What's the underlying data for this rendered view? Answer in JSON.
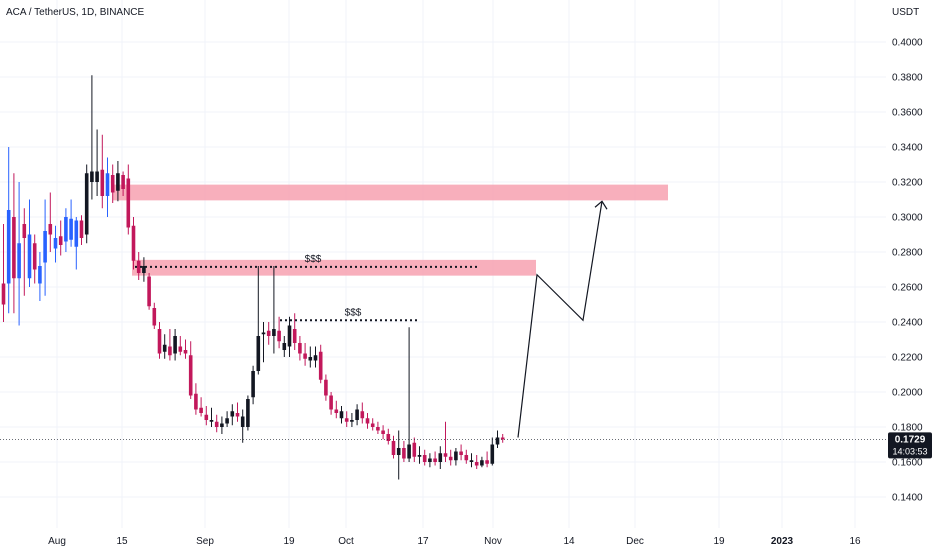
{
  "header": {
    "title": "ACA / TetherUS, 1D, BINANCE"
  },
  "axis": {
    "currency": "USDT"
  },
  "price_badge": {
    "price": "0.1729",
    "countdown": "14:03:53"
  },
  "colors": {
    "up": "#2962ff",
    "down": "#c2185b",
    "zone": "#f7a1b0",
    "black_candle": "#131722",
    "grid": "#f0f3fa",
    "badge_bg": "#131722"
  },
  "chart_data": {
    "type": "candlestick",
    "title": "ACA / TetherUS, 1D, BINANCE",
    "ylabel": "USDT",
    "ylim": [
      0.13,
      0.41
    ],
    "y_ticks": [
      "0.1400",
      "0.1600",
      "0.1800",
      "0.2000",
      "0.2200",
      "0.2400",
      "0.2600",
      "0.2800",
      "0.3000",
      "0.3200",
      "0.3400",
      "0.3600",
      "0.3800",
      "0.4000"
    ],
    "x_ticks": [
      "Aug",
      "15",
      "Sep",
      "19",
      "Oct",
      "17",
      "Nov",
      "14",
      "Dec",
      "19",
      "2023",
      "16"
    ],
    "current_price": 0.1729,
    "zones": [
      {
        "label": "",
        "low": 0.3095,
        "high": 0.3185
      },
      {
        "label": "$$$",
        "low": 0.2665,
        "high": 0.2755
      }
    ],
    "liquidity_lines": [
      {
        "label": "$$$",
        "price": 0.2715
      },
      {
        "label": "$$$",
        "price": 0.241
      }
    ],
    "projection_path": [
      0.174,
      0.267,
      0.241,
      0.309
    ],
    "candles": [
      {
        "o": 0.25,
        "h": 0.296,
        "l": 0.24,
        "c": 0.262,
        "d": "down"
      },
      {
        "o": 0.262,
        "h": 0.34,
        "l": 0.245,
        "c": 0.304,
        "d": "up"
      },
      {
        "o": 0.3,
        "h": 0.325,
        "l": 0.245,
        "c": 0.265,
        "d": "down"
      },
      {
        "o": 0.265,
        "h": 0.32,
        "l": 0.238,
        "c": 0.285,
        "d": "up"
      },
      {
        "o": 0.288,
        "h": 0.305,
        "l": 0.255,
        "c": 0.296,
        "d": "down"
      },
      {
        "o": 0.265,
        "h": 0.31,
        "l": 0.26,
        "c": 0.29,
        "d": "up"
      },
      {
        "o": 0.285,
        "h": 0.29,
        "l": 0.262,
        "c": 0.27,
        "d": "down"
      },
      {
        "o": 0.262,
        "h": 0.28,
        "l": 0.252,
        "c": 0.272,
        "d": "up"
      },
      {
        "o": 0.274,
        "h": 0.31,
        "l": 0.255,
        "c": 0.292,
        "d": "up"
      },
      {
        "o": 0.29,
        "h": 0.314,
        "l": 0.28,
        "c": 0.296,
        "d": "down"
      },
      {
        "o": 0.282,
        "h": 0.295,
        "l": 0.274,
        "c": 0.288,
        "d": "up"
      },
      {
        "o": 0.289,
        "h": 0.298,
        "l": 0.278,
        "c": 0.284,
        "d": "down"
      },
      {
        "o": 0.286,
        "h": 0.305,
        "l": 0.28,
        "c": 0.3,
        "d": "up"
      },
      {
        "o": 0.299,
        "h": 0.31,
        "l": 0.283,
        "c": 0.287,
        "d": "up"
      },
      {
        "o": 0.283,
        "h": 0.3,
        "l": 0.27,
        "c": 0.298,
        "d": "up"
      },
      {
        "o": 0.298,
        "h": 0.301,
        "l": 0.284,
        "c": 0.288,
        "d": "down"
      },
      {
        "o": 0.29,
        "h": 0.33,
        "l": 0.285,
        "c": 0.325,
        "d": "black"
      },
      {
        "o": 0.326,
        "h": 0.381,
        "l": 0.31,
        "c": 0.32,
        "d": "black"
      },
      {
        "o": 0.32,
        "h": 0.35,
        "l": 0.312,
        "c": 0.326,
        "d": "black"
      },
      {
        "o": 0.327,
        "h": 0.347,
        "l": 0.305,
        "c": 0.312,
        "d": "down"
      },
      {
        "o": 0.312,
        "h": 0.334,
        "l": 0.3,
        "c": 0.325,
        "d": "up"
      },
      {
        "o": 0.324,
        "h": 0.33,
        "l": 0.308,
        "c": 0.314,
        "d": "down"
      },
      {
        "o": 0.315,
        "h": 0.332,
        "l": 0.309,
        "c": 0.325,
        "d": "black"
      },
      {
        "o": 0.324,
        "h": 0.326,
        "l": 0.312,
        "c": 0.316,
        "d": "down"
      },
      {
        "o": 0.322,
        "h": 0.33,
        "l": 0.29,
        "c": 0.294,
        "d": "down"
      },
      {
        "o": 0.295,
        "h": 0.3,
        "l": 0.27,
        "c": 0.275,
        "d": "down"
      },
      {
        "o": 0.275,
        "h": 0.28,
        "l": 0.264,
        "c": 0.268,
        "d": "down"
      },
      {
        "o": 0.268,
        "h": 0.277,
        "l": 0.263,
        "c": 0.272,
        "d": "black"
      },
      {
        "o": 0.266,
        "h": 0.268,
        "l": 0.247,
        "c": 0.249,
        "d": "down"
      },
      {
        "o": 0.248,
        "h": 0.251,
        "l": 0.236,
        "c": 0.238,
        "d": "down"
      },
      {
        "o": 0.236,
        "h": 0.24,
        "l": 0.219,
        "c": 0.222,
        "d": "down"
      },
      {
        "o": 0.223,
        "h": 0.233,
        "l": 0.219,
        "c": 0.227,
        "d": "black"
      },
      {
        "o": 0.226,
        "h": 0.236,
        "l": 0.218,
        "c": 0.221,
        "d": "down"
      },
      {
        "o": 0.222,
        "h": 0.236,
        "l": 0.218,
        "c": 0.232,
        "d": "black"
      },
      {
        "o": 0.226,
        "h": 0.232,
        "l": 0.221,
        "c": 0.223,
        "d": "down"
      },
      {
        "o": 0.224,
        "h": 0.23,
        "l": 0.219,
        "c": 0.222,
        "d": "down"
      },
      {
        "o": 0.221,
        "h": 0.229,
        "l": 0.196,
        "c": 0.198,
        "d": "down"
      },
      {
        "o": 0.199,
        "h": 0.205,
        "l": 0.187,
        "c": 0.19,
        "d": "down"
      },
      {
        "o": 0.191,
        "h": 0.197,
        "l": 0.186,
        "c": 0.188,
        "d": "down"
      },
      {
        "o": 0.187,
        "h": 0.192,
        "l": 0.181,
        "c": 0.184,
        "d": "down"
      },
      {
        "o": 0.184,
        "h": 0.191,
        "l": 0.18,
        "c": 0.183,
        "d": "black"
      },
      {
        "o": 0.183,
        "h": 0.187,
        "l": 0.177,
        "c": 0.18,
        "d": "down"
      },
      {
        "o": 0.18,
        "h": 0.186,
        "l": 0.176,
        "c": 0.182,
        "d": "black"
      },
      {
        "o": 0.182,
        "h": 0.189,
        "l": 0.18,
        "c": 0.185,
        "d": "black"
      },
      {
        "o": 0.186,
        "h": 0.193,
        "l": 0.181,
        "c": 0.189,
        "d": "black"
      },
      {
        "o": 0.188,
        "h": 0.194,
        "l": 0.183,
        "c": 0.186,
        "d": "down"
      },
      {
        "o": 0.186,
        "h": 0.19,
        "l": 0.171,
        "c": 0.18,
        "d": "black"
      },
      {
        "o": 0.18,
        "h": 0.198,
        "l": 0.178,
        "c": 0.196,
        "d": "black"
      },
      {
        "o": 0.197,
        "h": 0.215,
        "l": 0.193,
        "c": 0.212,
        "d": "black"
      },
      {
        "o": 0.212,
        "h": 0.272,
        "l": 0.21,
        "c": 0.232,
        "d": "black"
      },
      {
        "o": 0.233,
        "h": 0.24,
        "l": 0.217,
        "c": 0.234,
        "d": "black"
      },
      {
        "o": 0.235,
        "h": 0.24,
        "l": 0.227,
        "c": 0.232,
        "d": "down"
      },
      {
        "o": 0.232,
        "h": 0.272,
        "l": 0.222,
        "c": 0.236,
        "d": "black"
      },
      {
        "o": 0.235,
        "h": 0.243,
        "l": 0.225,
        "c": 0.229,
        "d": "down"
      },
      {
        "o": 0.228,
        "h": 0.232,
        "l": 0.22,
        "c": 0.224,
        "d": "black"
      },
      {
        "o": 0.226,
        "h": 0.243,
        "l": 0.22,
        "c": 0.238,
        "d": "black"
      },
      {
        "o": 0.236,
        "h": 0.245,
        "l": 0.224,
        "c": 0.228,
        "d": "down"
      },
      {
        "o": 0.228,
        "h": 0.232,
        "l": 0.218,
        "c": 0.222,
        "d": "down"
      },
      {
        "o": 0.222,
        "h": 0.228,
        "l": 0.215,
        "c": 0.219,
        "d": "down"
      },
      {
        "o": 0.22,
        "h": 0.226,
        "l": 0.214,
        "c": 0.218,
        "d": "black"
      },
      {
        "o": 0.218,
        "h": 0.226,
        "l": 0.214,
        "c": 0.221,
        "d": "black"
      },
      {
        "o": 0.223,
        "h": 0.227,
        "l": 0.205,
        "c": 0.207,
        "d": "down"
      },
      {
        "o": 0.207,
        "h": 0.21,
        "l": 0.195,
        "c": 0.198,
        "d": "down"
      },
      {
        "o": 0.198,
        "h": 0.2,
        "l": 0.187,
        "c": 0.19,
        "d": "down"
      },
      {
        "o": 0.19,
        "h": 0.195,
        "l": 0.185,
        "c": 0.188,
        "d": "down"
      },
      {
        "o": 0.189,
        "h": 0.192,
        "l": 0.182,
        "c": 0.185,
        "d": "black"
      },
      {
        "o": 0.185,
        "h": 0.189,
        "l": 0.18,
        "c": 0.183,
        "d": "down"
      },
      {
        "o": 0.183,
        "h": 0.188,
        "l": 0.18,
        "c": 0.184,
        "d": "black"
      },
      {
        "o": 0.184,
        "h": 0.193,
        "l": 0.181,
        "c": 0.19,
        "d": "black"
      },
      {
        "o": 0.189,
        "h": 0.194,
        "l": 0.182,
        "c": 0.185,
        "d": "down"
      },
      {
        "o": 0.185,
        "h": 0.188,
        "l": 0.179,
        "c": 0.182,
        "d": "down"
      },
      {
        "o": 0.182,
        "h": 0.185,
        "l": 0.178,
        "c": 0.18,
        "d": "down"
      },
      {
        "o": 0.18,
        "h": 0.183,
        "l": 0.176,
        "c": 0.178,
        "d": "down"
      },
      {
        "o": 0.178,
        "h": 0.181,
        "l": 0.173,
        "c": 0.176,
        "d": "down"
      },
      {
        "o": 0.176,
        "h": 0.179,
        "l": 0.17,
        "c": 0.172,
        "d": "down"
      },
      {
        "o": 0.172,
        "h": 0.175,
        "l": 0.162,
        "c": 0.164,
        "d": "down"
      },
      {
        "o": 0.164,
        "h": 0.178,
        "l": 0.15,
        "c": 0.168,
        "d": "black"
      },
      {
        "o": 0.168,
        "h": 0.172,
        "l": 0.16,
        "c": 0.162,
        "d": "down"
      },
      {
        "o": 0.162,
        "h": 0.237,
        "l": 0.16,
        "c": 0.17,
        "d": "black"
      },
      {
        "o": 0.171,
        "h": 0.174,
        "l": 0.16,
        "c": 0.163,
        "d": "down"
      },
      {
        "o": 0.163,
        "h": 0.169,
        "l": 0.159,
        "c": 0.164,
        "d": "black"
      },
      {
        "o": 0.164,
        "h": 0.167,
        "l": 0.158,
        "c": 0.16,
        "d": "down"
      },
      {
        "o": 0.16,
        "h": 0.165,
        "l": 0.157,
        "c": 0.162,
        "d": "black"
      },
      {
        "o": 0.162,
        "h": 0.166,
        "l": 0.158,
        "c": 0.16,
        "d": "down"
      },
      {
        "o": 0.16,
        "h": 0.169,
        "l": 0.156,
        "c": 0.165,
        "d": "black"
      },
      {
        "o": 0.165,
        "h": 0.183,
        "l": 0.16,
        "c": 0.163,
        "d": "down"
      },
      {
        "o": 0.163,
        "h": 0.167,
        "l": 0.158,
        "c": 0.161,
        "d": "down"
      },
      {
        "o": 0.161,
        "h": 0.168,
        "l": 0.158,
        "c": 0.166,
        "d": "black"
      },
      {
        "o": 0.166,
        "h": 0.17,
        "l": 0.161,
        "c": 0.164,
        "d": "down"
      },
      {
        "o": 0.164,
        "h": 0.167,
        "l": 0.159,
        "c": 0.161,
        "d": "down"
      },
      {
        "o": 0.161,
        "h": 0.165,
        "l": 0.157,
        "c": 0.16,
        "d": "black"
      },
      {
        "o": 0.16,
        "h": 0.164,
        "l": 0.156,
        "c": 0.158,
        "d": "down"
      },
      {
        "o": 0.158,
        "h": 0.163,
        "l": 0.157,
        "c": 0.161,
        "d": "black"
      },
      {
        "o": 0.161,
        "h": 0.166,
        "l": 0.157,
        "c": 0.159,
        "d": "down"
      },
      {
        "o": 0.159,
        "h": 0.174,
        "l": 0.158,
        "c": 0.17,
        "d": "black"
      },
      {
        "o": 0.17,
        "h": 0.178,
        "l": 0.168,
        "c": 0.174,
        "d": "black"
      },
      {
        "o": 0.174,
        "h": 0.176,
        "l": 0.171,
        "c": 0.1729,
        "d": "down"
      }
    ]
  }
}
